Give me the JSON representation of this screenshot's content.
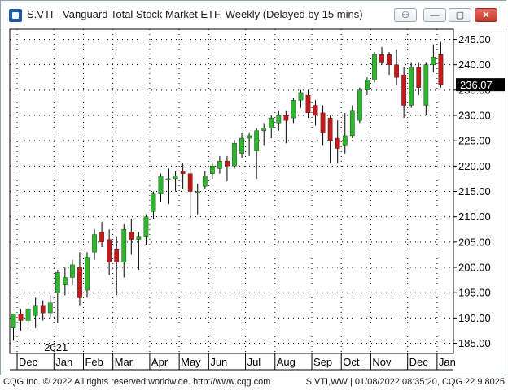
{
  "window": {
    "title": "S.VTI - Vanguard Total Stock Market ETF, Weekly (Delayed by 15 mins)",
    "controls": {
      "link": "⚇",
      "minimize": "—",
      "maximize": "▢",
      "close": "✕"
    }
  },
  "footer": {
    "left": "CQG Inc. © 2022 All rights reserved worldwide. http://www.cqg.com",
    "right": "S.VTI,WW | 01/08/2022 08:35:20, CQG 22.9.8025"
  },
  "colors": {
    "up": "#2db52d",
    "down": "#c41919",
    "wick": "#000000",
    "last_price_bg": "#000000",
    "last_price_fg": "#ffffff"
  },
  "chart_data": {
    "type": "candlestick",
    "title": "S.VTI - Vanguard Total Stock Market ETF, Weekly (Delayed by 15 mins)",
    "ylim": [
      183,
      247
    ],
    "y_ticks": [
      185.0,
      190.0,
      195.0,
      200.0,
      205.0,
      210.0,
      215.0,
      220.0,
      225.0,
      230.0,
      235.0,
      240.0,
      245.0
    ],
    "y_tick_labels": [
      "185.00",
      "190.00",
      "195.00",
      "200.00",
      "205.00",
      "210.00",
      "215.00",
      "220.00",
      "225.00",
      "230.00",
      "235.00",
      "240.00",
      "245.00"
    ],
    "x_month_labels": [
      {
        "label": "Dec",
        "week": 1
      },
      {
        "label": "Jan",
        "week": 6
      },
      {
        "label": "Feb",
        "week": 10
      },
      {
        "label": "Mar",
        "week": 14
      },
      {
        "label": "Apr",
        "week": 19
      },
      {
        "label": "May",
        "week": 23
      },
      {
        "label": "Jun",
        "week": 27
      },
      {
        "label": "Jul",
        "week": 32
      },
      {
        "label": "Aug",
        "week": 36
      },
      {
        "label": "Sep",
        "week": 41
      },
      {
        "label": "Oct",
        "week": 45
      },
      {
        "label": "Nov",
        "week": 49
      },
      {
        "label": "Dec",
        "week": 54
      },
      {
        "label": "Jan",
        "week": 58
      }
    ],
    "year_label": {
      "label": "2021",
      "week": 6
    },
    "last_price": "236.07",
    "candles": [
      {
        "o": 188.0,
        "h": 190.5,
        "l": 185.5,
        "c": 190.8
      },
      {
        "o": 190.8,
        "h": 191.8,
        "l": 187.5,
        "c": 189.5
      },
      {
        "o": 189.5,
        "h": 193.0,
        "l": 188.5,
        "c": 191.8
      },
      {
        "o": 190.5,
        "h": 194.0,
        "l": 188.0,
        "c": 192.5
      },
      {
        "o": 192.5,
        "h": 193.5,
        "l": 189.5,
        "c": 191.0
      },
      {
        "o": 191.0,
        "h": 194.5,
        "l": 190.0,
        "c": 193.0
      },
      {
        "o": 195.0,
        "h": 199.5,
        "l": 189.0,
        "c": 199.0
      },
      {
        "o": 196.5,
        "h": 200.0,
        "l": 194.5,
        "c": 198.0
      },
      {
        "o": 198.0,
        "h": 201.5,
        "l": 196.5,
        "c": 200.5
      },
      {
        "o": 200.0,
        "h": 203.0,
        "l": 192.5,
        "c": 194.0
      },
      {
        "o": 195.5,
        "h": 203.0,
        "l": 194.0,
        "c": 202.0
      },
      {
        "o": 203.0,
        "h": 207.5,
        "l": 201.5,
        "c": 206.5
      },
      {
        "o": 207.0,
        "h": 209.0,
        "l": 204.0,
        "c": 205.0
      },
      {
        "o": 205.5,
        "h": 207.5,
        "l": 198.5,
        "c": 201.0
      },
      {
        "o": 203.5,
        "h": 206.0,
        "l": 194.5,
        "c": 201.0
      },
      {
        "o": 201.0,
        "h": 208.5,
        "l": 198.0,
        "c": 207.5
      },
      {
        "o": 207.0,
        "h": 209.5,
        "l": 202.5,
        "c": 205.5
      },
      {
        "o": 205.5,
        "h": 207.0,
        "l": 199.5,
        "c": 206.0
      },
      {
        "o": 206.0,
        "h": 210.5,
        "l": 204.5,
        "c": 210.0
      },
      {
        "o": 211.0,
        "h": 215.0,
        "l": 209.5,
        "c": 214.5
      },
      {
        "o": 214.5,
        "h": 218.5,
        "l": 213.0,
        "c": 218.0
      },
      {
        "o": 217.5,
        "h": 219.5,
        "l": 212.5,
        "c": 217.5
      },
      {
        "o": 217.5,
        "h": 219.0,
        "l": 215.0,
        "c": 218.0
      },
      {
        "o": 219.0,
        "h": 220.5,
        "l": 215.5,
        "c": 218.5
      },
      {
        "o": 218.5,
        "h": 219.5,
        "l": 209.5,
        "c": 215.0
      },
      {
        "o": 215.0,
        "h": 216.5,
        "l": 210.5,
        "c": 215.0
      },
      {
        "o": 216.0,
        "h": 219.0,
        "l": 215.5,
        "c": 218.0
      },
      {
        "o": 218.5,
        "h": 220.5,
        "l": 217.5,
        "c": 220.0
      },
      {
        "o": 219.5,
        "h": 222.0,
        "l": 218.5,
        "c": 221.0
      },
      {
        "o": 221.0,
        "h": 222.0,
        "l": 217.0,
        "c": 220.0
      },
      {
        "o": 220.0,
        "h": 225.0,
        "l": 219.5,
        "c": 224.5
      },
      {
        "o": 222.5,
        "h": 226.5,
        "l": 221.5,
        "c": 225.5
      },
      {
        "o": 225.5,
        "h": 226.5,
        "l": 222.0,
        "c": 226.0
      },
      {
        "o": 223.0,
        "h": 227.5,
        "l": 217.5,
        "c": 227.0
      },
      {
        "o": 227.0,
        "h": 228.5,
        "l": 224.0,
        "c": 227.5
      },
      {
        "o": 227.5,
        "h": 230.0,
        "l": 225.5,
        "c": 229.5
      },
      {
        "o": 228.5,
        "h": 231.0,
        "l": 227.0,
        "c": 230.0
      },
      {
        "o": 230.0,
        "h": 231.0,
        "l": 224.5,
        "c": 229.0
      },
      {
        "o": 229.5,
        "h": 233.5,
        "l": 228.5,
        "c": 233.0
      },
      {
        "o": 233.0,
        "h": 235.0,
        "l": 231.5,
        "c": 234.5
      },
      {
        "o": 234.0,
        "h": 235.0,
        "l": 229.5,
        "c": 230.5
      },
      {
        "o": 232.0,
        "h": 233.0,
        "l": 228.0,
        "c": 230.0
      },
      {
        "o": 230.5,
        "h": 232.0,
        "l": 224.0,
        "c": 226.5
      },
      {
        "o": 229.5,
        "h": 230.0,
        "l": 220.5,
        "c": 225.0
      },
      {
        "o": 225.5,
        "h": 229.0,
        "l": 220.5,
        "c": 223.5
      },
      {
        "o": 224.0,
        "h": 230.5,
        "l": 222.5,
        "c": 226.0
      },
      {
        "o": 226.0,
        "h": 232.0,
        "l": 225.5,
        "c": 231.0
      },
      {
        "o": 229.0,
        "h": 235.5,
        "l": 228.5,
        "c": 235.0
      },
      {
        "o": 235.0,
        "h": 237.5,
        "l": 234.0,
        "c": 237.0
      },
      {
        "o": 237.0,
        "h": 242.5,
        "l": 236.5,
        "c": 242.0
      },
      {
        "o": 242.0,
        "h": 243.5,
        "l": 240.0,
        "c": 240.5
      },
      {
        "o": 242.0,
        "h": 242.5,
        "l": 238.0,
        "c": 240.0
      },
      {
        "o": 240.0,
        "h": 243.0,
        "l": 236.0,
        "c": 237.5
      },
      {
        "o": 238.0,
        "h": 239.5,
        "l": 229.5,
        "c": 232.0
      },
      {
        "o": 232.0,
        "h": 240.5,
        "l": 231.5,
        "c": 239.5
      },
      {
        "o": 239.5,
        "h": 240.5,
        "l": 234.0,
        "c": 235.5
      },
      {
        "o": 232.0,
        "h": 240.5,
        "l": 230.0,
        "c": 240.0
      },
      {
        "o": 240.0,
        "h": 244.0,
        "l": 238.5,
        "c": 241.5
      },
      {
        "o": 242.0,
        "h": 244.5,
        "l": 235.5,
        "c": 236.1
      }
    ]
  }
}
